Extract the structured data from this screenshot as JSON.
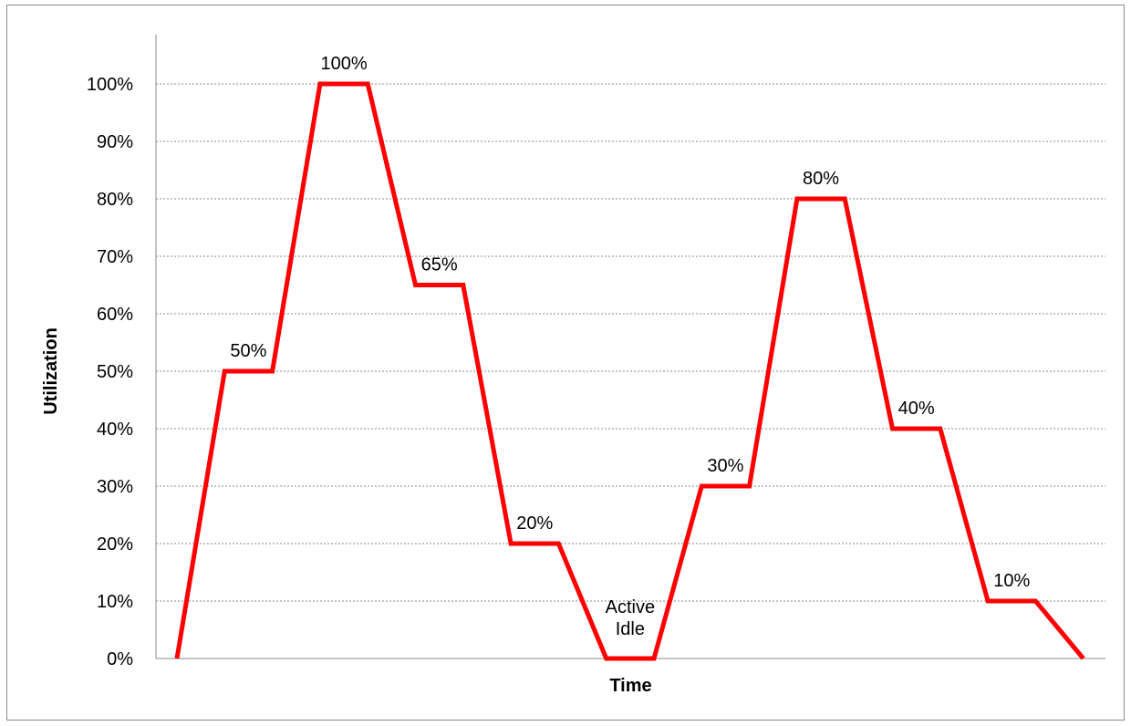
{
  "chart_data": {
    "type": "line",
    "xlabel": "Time",
    "ylabel": "Utilization",
    "ylim": [
      0,
      100
    ],
    "yticks": [
      "0%",
      "10%",
      "20%",
      "30%",
      "40%",
      "50%",
      "60%",
      "70%",
      "80%",
      "90%",
      "100%"
    ],
    "grid": true,
    "legend": "none",
    "line_color": "#ff0000",
    "series": [
      {
        "values": [
          0,
          50,
          50,
          100,
          100,
          65,
          65,
          20,
          20,
          0,
          0,
          30,
          30,
          80,
          80,
          40,
          40,
          10,
          10,
          0
        ]
      }
    ],
    "annotations": [
      {
        "text": "50%",
        "y": 50,
        "segment": 1
      },
      {
        "text": "100%",
        "y": 100,
        "segment": 3
      },
      {
        "text": "65%",
        "y": 65,
        "segment": 5
      },
      {
        "text": "20%",
        "y": 20,
        "segment": 7
      },
      {
        "text": "Active",
        "line2": "Idle",
        "y": 0,
        "segment": 9
      },
      {
        "text": "30%",
        "y": 30,
        "segment": 11
      },
      {
        "text": "80%",
        "y": 80,
        "segment": 13
      },
      {
        "text": "40%",
        "y": 40,
        "segment": 15
      },
      {
        "text": "10%",
        "y": 10,
        "segment": 17
      }
    ]
  }
}
